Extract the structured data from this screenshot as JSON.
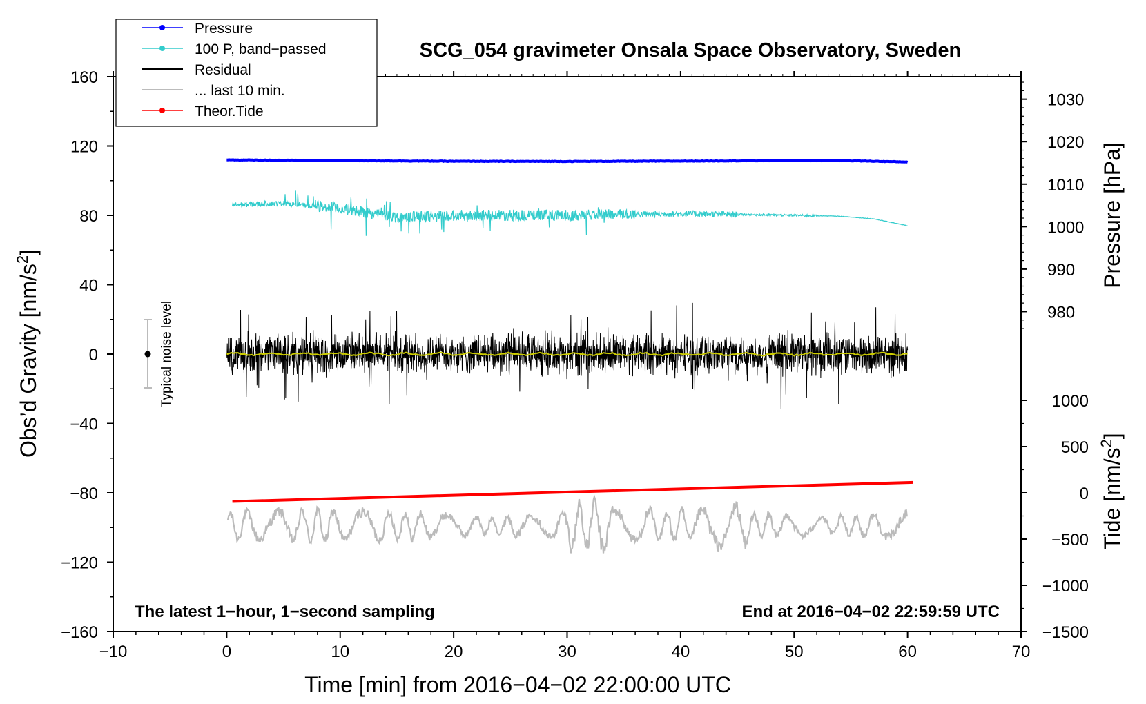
{
  "chart_data": {
    "type": "line",
    "title": "SCG_054 gravimeter Onsala Space Observatory, Sweden",
    "xlabel": "Time [min] from 2016−04−02 22:00:00 UTC",
    "ylabel_left": "Obs’d Gravity [nm/s²]",
    "ylabel_left_parts": {
      "base": "Obs’d Gravity [nm/s",
      "sup": "2",
      "close": "]"
    },
    "ylabel_right_pressure": "Pressure [hPa]",
    "ylabel_right_tide": "Tide [nm/s²]",
    "ylabel_right_tide_parts": {
      "base": "Tide [nm/s",
      "sup": "2",
      "close": "]"
    },
    "xlim": [
      -10,
      70
    ],
    "ylim": [
      -160,
      160
    ],
    "x_ticks": [
      -10,
      0,
      10,
      20,
      30,
      40,
      50,
      60,
      70
    ],
    "x_tick_labels": [
      "−10",
      "0",
      "10",
      "20",
      "30",
      "40",
      "50",
      "60",
      "70"
    ],
    "y_ticks": [
      -160,
      -120,
      -80,
      -40,
      0,
      40,
      80,
      120,
      160
    ],
    "y_tick_labels": [
      "−160",
      "−120",
      "−80",
      "−40",
      "0",
      "40",
      "80",
      "120",
      "160"
    ],
    "pressure_axis": {
      "ticks": [
        980,
        990,
        1000,
        1010,
        1020,
        1030
      ],
      "tick_labels": [
        "980",
        "990",
        "1000",
        "1010",
        "1020",
        "1030"
      ],
      "map_left_value_at_1000": 73.5,
      "left_units_per_hpa": 2.45
    },
    "tide_axis": {
      "ticks": [
        -1500,
        -1000,
        -500,
        0,
        500,
        1000
      ],
      "tick_labels": [
        "−1500",
        "−1000",
        "−500",
        "0",
        "500",
        "1000"
      ],
      "map_left_value_at_0": -80,
      "left_units_per_nms2": 0.05333
    },
    "legend": {
      "position": "top-left",
      "entries": [
        {
          "label": "Pressure",
          "color": "#0000ff",
          "marker": "dot"
        },
        {
          "label": "100 P, band−passed",
          "color": "#33cccc",
          "marker": "dot"
        },
        {
          "label": "Residual",
          "color": "#000000",
          "marker": "none"
        },
        {
          "label": "... last 10 min.",
          "color": "#bbbbbb",
          "marker": "none"
        },
        {
          "label": "Theor.Tide",
          "color": "#ff0000",
          "marker": "dot"
        }
      ]
    },
    "noise_bar": {
      "label": "Typical noise level",
      "x": -7,
      "center": 0,
      "half_range": 20
    },
    "annotations": {
      "bottom_left": "The latest 1−hour, 1−second sampling",
      "bottom_right": "End at 2016−04−02 22:59:59 UTC"
    },
    "series": [
      {
        "name": "Pressure",
        "color": "#0000ff",
        "x": [
          0,
          10,
          20,
          30,
          40,
          50,
          55,
          60
        ],
        "values": [
          112,
          111.6,
          111.2,
          111.1,
          111.3,
          111.6,
          111.5,
          110.8
        ]
      },
      {
        "name": "100 P, band−passed",
        "color": "#33cccc",
        "x": [
          0.5,
          5,
          10,
          15,
          20,
          30,
          40,
          50,
          54,
          57,
          60
        ],
        "values": [
          86,
          87,
          84,
          79,
          80,
          80,
          81,
          80,
          79.5,
          78,
          74
        ]
      },
      {
        "name": "Residual",
        "color": "#000000",
        "x_range": [
          0,
          60
        ],
        "center": 0,
        "typical_amplitude": 14,
        "max_abs": 32
      },
      {
        "name": "Residual smoothed",
        "color": "#cccc00",
        "x_range": [
          0,
          60
        ],
        "center": 0
      },
      {
        "name": "... last 10 min.",
        "color": "#bbbbbb",
        "x_range": [
          0,
          60
        ],
        "center": -99,
        "typical_amplitude": 10,
        "max_abs": 26
      },
      {
        "name": "Theor.Tide",
        "color": "#ff0000",
        "x": [
          0.5,
          60.5
        ],
        "values": [
          -85,
          -74
        ]
      }
    ]
  }
}
